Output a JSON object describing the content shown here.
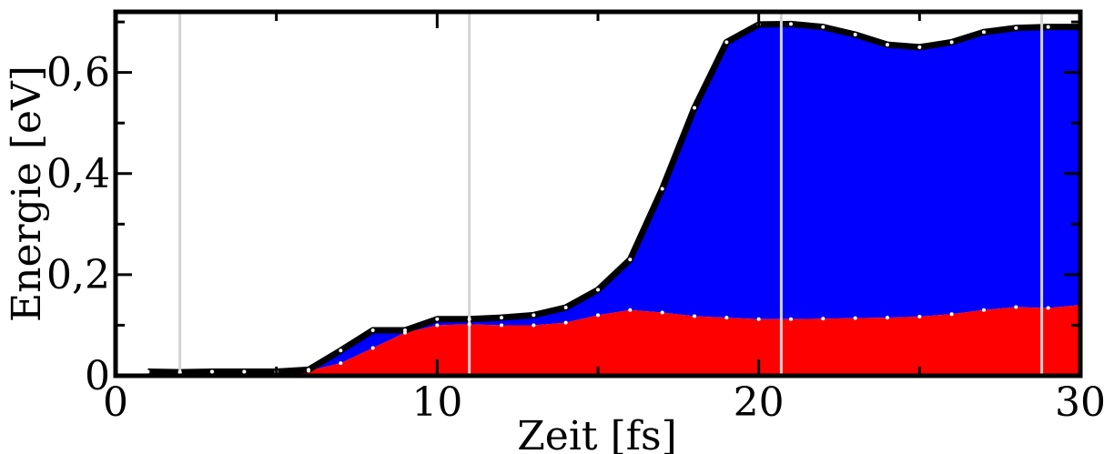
{
  "chart_data": {
    "type": "area",
    "xlabel": "Zeit [fs]",
    "ylabel": "Energie [eV]",
    "xlim": [
      0,
      30
    ],
    "ylim": [
      0,
      0.72
    ],
    "x_ticks": [
      {
        "value": 0,
        "label": "0"
      },
      {
        "value": 10,
        "label": "10"
      },
      {
        "value": 20,
        "label": "20"
      },
      {
        "value": 30,
        "label": "30"
      }
    ],
    "y_ticks": [
      {
        "value": 0,
        "label": "0"
      },
      {
        "value": 0.2,
        "label": "0,2"
      },
      {
        "value": 0.4,
        "label": "0,4"
      },
      {
        "value": 0.6,
        "label": "0,6"
      }
    ],
    "grid": false,
    "vertical_markers": [
      2,
      11,
      20.7,
      28.8
    ],
    "x": [
      1,
      2,
      3,
      4,
      5,
      6,
      7,
      8,
      9,
      10,
      11,
      12,
      13,
      14,
      15,
      16,
      17,
      18,
      19,
      20,
      21,
      22,
      23,
      24,
      25,
      26,
      27,
      28,
      29,
      30
    ],
    "series": [
      {
        "values": [
          0.008,
          0.007,
          0.008,
          0.008,
          0.008,
          0.01,
          0.025,
          0.055,
          0.085,
          0.1,
          0.102,
          0.1,
          0.1,
          0.105,
          0.12,
          0.13,
          0.125,
          0.118,
          0.115,
          0.112,
          0.112,
          0.113,
          0.114,
          0.115,
          0.117,
          0.122,
          0.13,
          0.136,
          0.134,
          0.14
        ],
        "color": "#ff0000"
      },
      {
        "values": [
          0.008,
          0.007,
          0.008,
          0.008,
          0.008,
          0.012,
          0.05,
          0.09,
          0.09,
          0.112,
          0.112,
          0.115,
          0.12,
          0.135,
          0.17,
          0.23,
          0.37,
          0.53,
          0.66,
          0.695,
          0.696,
          0.69,
          0.675,
          0.655,
          0.65,
          0.66,
          0.68,
          0.688,
          0.69,
          0.69
        ],
        "color": "#0000ff"
      }
    ],
    "total_line_color": "#000000",
    "marker_color": "#d3d3d3"
  }
}
